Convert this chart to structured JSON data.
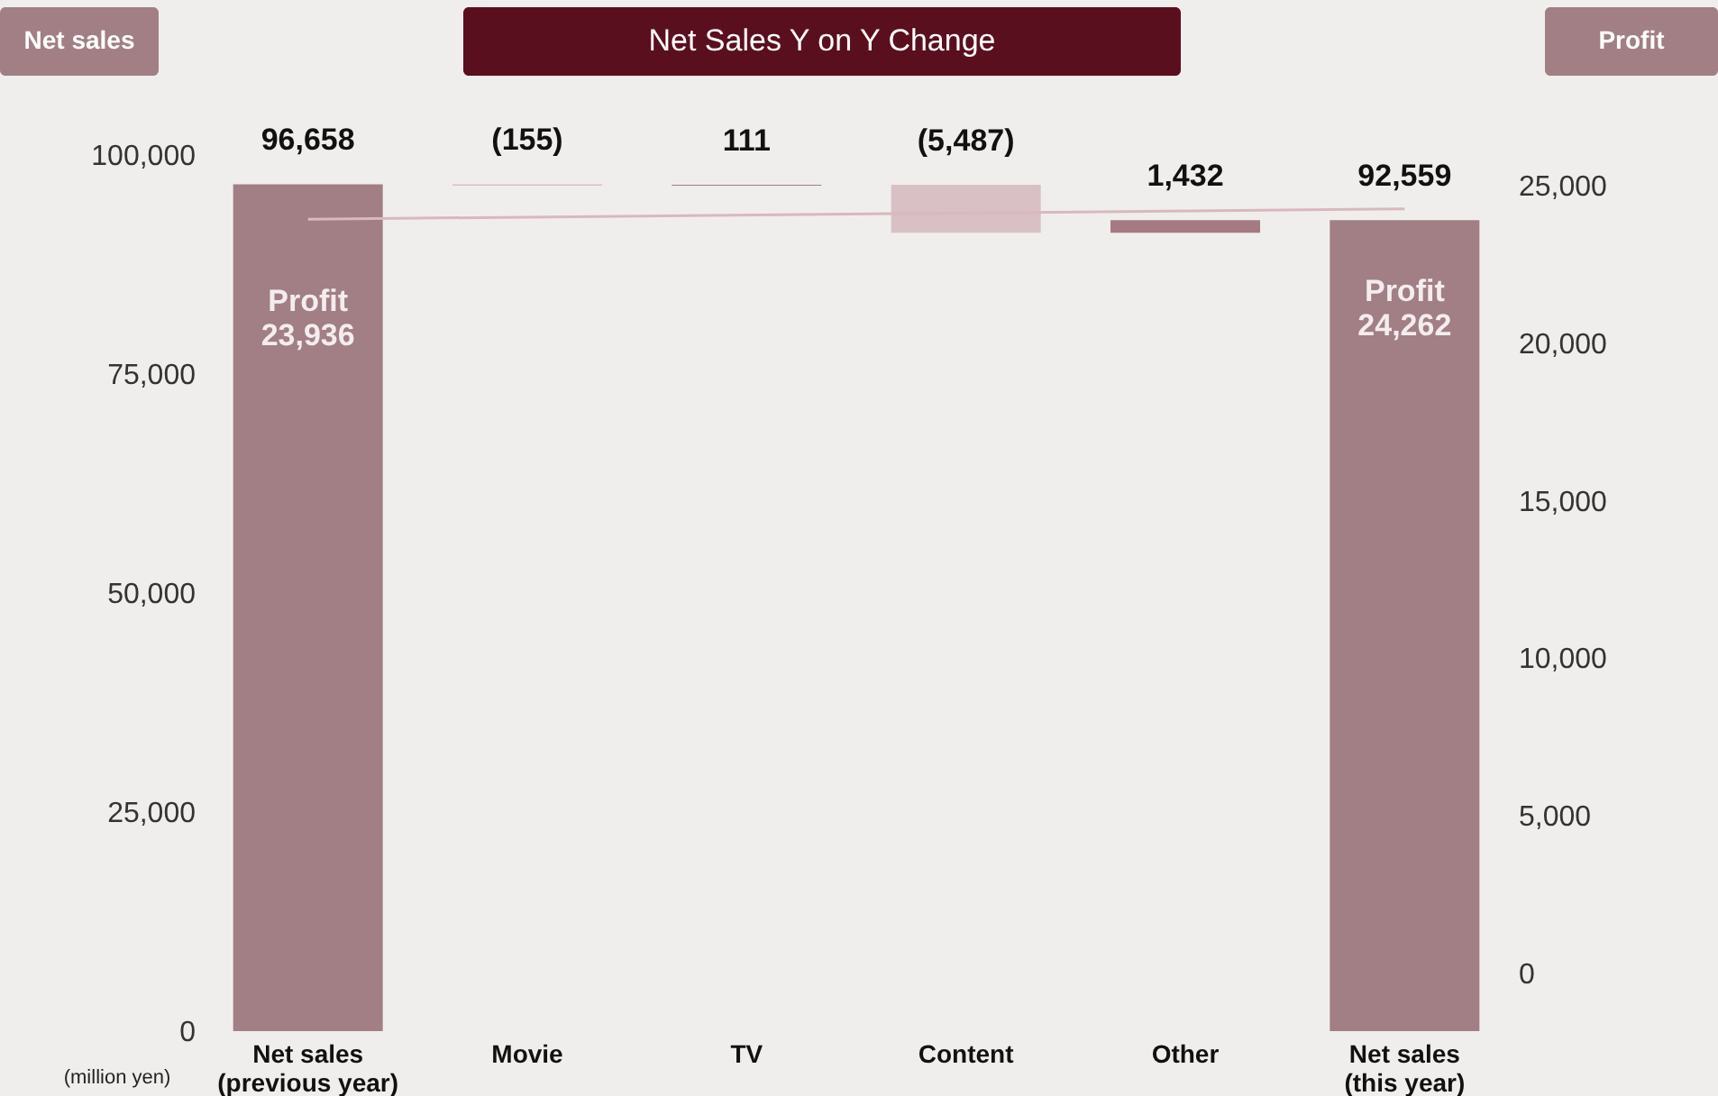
{
  "chart_data": {
    "type": "bar",
    "title": "Net Sales Y on Y Change",
    "ylabel": "Net sales",
    "y2label": "Profit",
    "categories": [
      "Net sales\n(previous year)",
      "Movie",
      "TV",
      "Content",
      "Other",
      "Net sales\n(this year)"
    ],
    "series": [
      {
        "type": "bar",
        "values": [
          96658,
          -155,
          111,
          -5487,
          1432,
          92559
        ],
        "base": [
          0,
          96658,
          96503,
          96614,
          91127,
          0
        ],
        "colors": [
          "#a17f84",
          "#d8c0c4",
          "#a57a82",
          "#d8c0c4",
          "#a57a82",
          "#a17f84"
        ],
        "value_labels": [
          "96,658",
          "(155)",
          "111",
          "(5,487)",
          "1,432",
          "92,559"
        ]
      },
      {
        "type": "line",
        "axis": "y2",
        "x": [
          "Net sales\n(previous year)",
          "Net sales\n(this year)"
        ],
        "values": [
          23936,
          24262
        ],
        "color": "#d9b8bf",
        "value_labels": [
          "Profit\n23,936",
          "Profit\n24,262"
        ]
      }
    ],
    "ylim": [
      0,
      100000
    ],
    "yticks": [
      0,
      {
        "value": 25000,
        "label": "25,000"
      },
      {
        "value": 50000,
        "label": "50,000"
      },
      {
        "value": 75000,
        "label": "75,000"
      },
      {
        "value": 100000,
        "label": "100,000"
      }
    ],
    "y2lim": [
      0,
      25000
    ],
    "y2ticks": [
      0,
      {
        "value": 5000,
        "label": "5,000"
      },
      {
        "value": 10000,
        "label": "10,000"
      },
      {
        "value": 15000,
        "label": "15,000"
      },
      {
        "value": 20000,
        "label": "20,000"
      },
      {
        "value": 25000,
        "label": "25,000"
      }
    ],
    "annotations": [
      "(million yen)"
    ],
    "grid": false
  }
}
